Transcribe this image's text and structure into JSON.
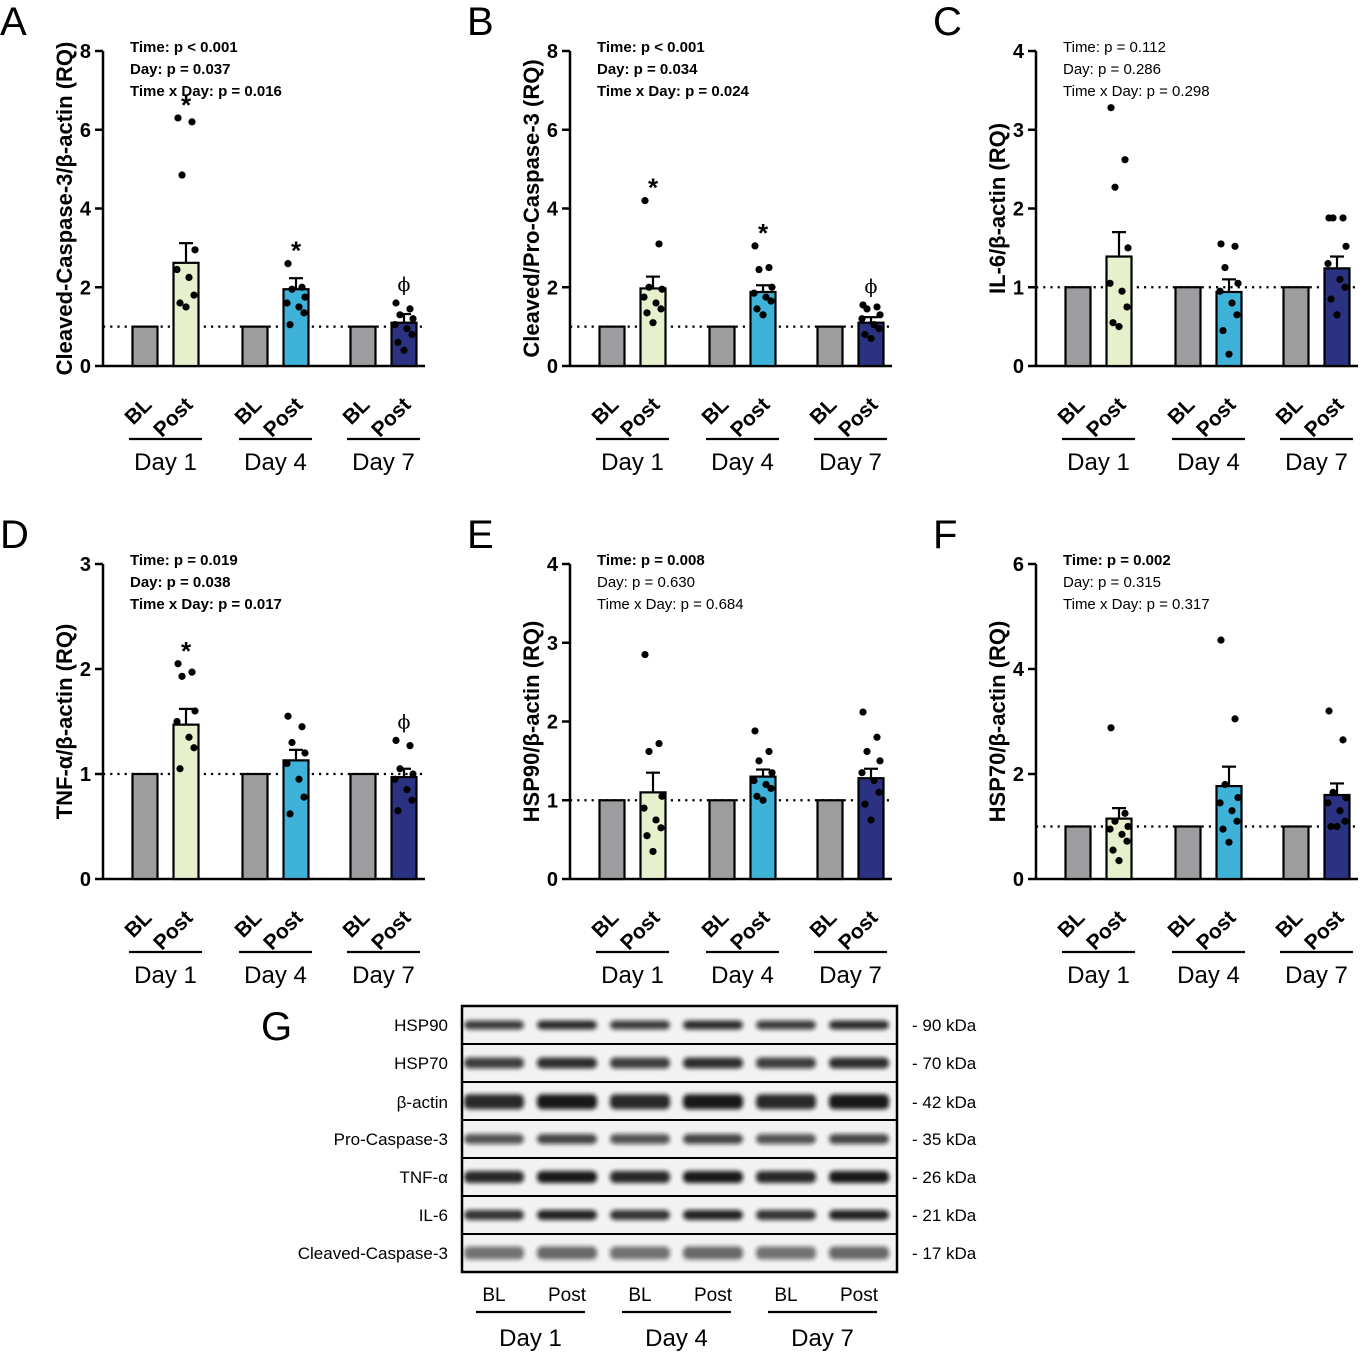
{
  "colors": {
    "BL": "#9d9da0",
    "Day 1 Post": "#e6f0cd",
    "Day 4 Post": "#3fb2d9",
    "Day 7 Post": "#2a3281"
  },
  "chart_data": [
    {
      "panel": "A",
      "type": "bar",
      "ylabel": "Cleaved-Caspase-3/β-actin (RQ)",
      "ylim": [
        0,
        8
      ],
      "yticks": [
        0,
        2,
        4,
        6,
        8
      ],
      "categories": [
        "BL",
        "Post",
        "BL",
        "Post",
        "BL",
        "Post"
      ],
      "groups": [
        "Day 1",
        "Day 4",
        "Day 7"
      ],
      "values": [
        1,
        2.62,
        1,
        1.95,
        1,
        1.1
      ],
      "sem": [
        0,
        0.5,
        0,
        0.28,
        0,
        0.22
      ],
      "points": [
        [],
        [
          6.3,
          6.2,
          4.85,
          2.95,
          2.45,
          2.25,
          1.8,
          1.6,
          1.5
        ],
        [],
        [
          2.6,
          2.0,
          1.95,
          1.75,
          1.6,
          1.5,
          1.35,
          1.05
        ],
        [],
        [
          1.6,
          1.45,
          1.3,
          1.2,
          1.05,
          0.95,
          0.8,
          0.6,
          0.4
        ]
      ],
      "marks": [
        "",
        "*",
        "",
        "*",
        "",
        "ϕ"
      ],
      "stats": [
        {
          "text": "Time: p < 0.001",
          "bold": true
        },
        {
          "text": "Day: p = 0.037",
          "bold": true
        },
        {
          "text": "Time x Day: p = 0.016",
          "bold": true
        }
      ]
    },
    {
      "panel": "B",
      "type": "bar",
      "ylabel": "Cleaved/Pro-Caspase-3 (RQ)",
      "ylim": [
        0,
        8
      ],
      "yticks": [
        0,
        2,
        4,
        6,
        8
      ],
      "categories": [
        "BL",
        "Post",
        "BL",
        "Post",
        "BL",
        "Post"
      ],
      "groups": [
        "Day 1",
        "Day 4",
        "Day 7"
      ],
      "values": [
        1,
        1.97,
        1,
        1.88,
        1,
        1.1
      ],
      "sem": [
        0,
        0.3,
        0,
        0.17,
        0,
        0.14
      ],
      "points": [
        [],
        [
          4.2,
          3.1,
          2.0,
          1.95,
          1.75,
          1.6,
          1.45,
          1.35,
          1.1
        ],
        [],
        [
          3.05,
          2.5,
          2.45,
          2.0,
          1.85,
          1.75,
          1.65,
          1.45,
          1.3
        ],
        [],
        [
          1.55,
          1.5,
          1.45,
          1.3,
          1.2,
          1.05,
          0.95,
          0.8,
          0.7
        ]
      ],
      "marks": [
        "",
        "*",
        "",
        "*",
        "",
        "ϕ"
      ],
      "stats": [
        {
          "text": "Time: p < 0.001",
          "bold": true
        },
        {
          "text": "Day: p = 0.034",
          "bold": true
        },
        {
          "text": "Time x Day: p = 0.024",
          "bold": true
        }
      ]
    },
    {
      "panel": "C",
      "type": "bar",
      "ylabel": "IL-6/β-actin (RQ)",
      "ylim": [
        0,
        4
      ],
      "yticks": [
        0,
        1,
        2,
        3,
        4
      ],
      "categories": [
        "BL",
        "Post",
        "BL",
        "Post",
        "BL",
        "Post"
      ],
      "groups": [
        "Day 1",
        "Day 4",
        "Day 7"
      ],
      "values": [
        1,
        1.39,
        1,
        0.94,
        1,
        1.24
      ],
      "sem": [
        0,
        0.31,
        0,
        0.16,
        0,
        0.15
      ],
      "points": [
        [],
        [
          3.28,
          2.62,
          2.27,
          1.5,
          1.05,
          0.95,
          0.75,
          0.55,
          0.5
        ],
        [],
        [
          1.55,
          1.52,
          1.25,
          1.05,
          0.95,
          0.8,
          0.65,
          0.45,
          0.15
        ],
        [],
        [
          1.88,
          1.88,
          1.88,
          1.52,
          1.3,
          1.1,
          1.0,
          0.85,
          0.65
        ]
      ],
      "marks": [
        "",
        "",
        "",
        "",
        "",
        ""
      ],
      "stats": [
        {
          "text": "Time: p = 0.112",
          "bold": false
        },
        {
          "text": "Day: p = 0.286",
          "bold": false
        },
        {
          "text": "Time x Day: p = 0.298",
          "bold": false
        }
      ]
    },
    {
      "panel": "D",
      "type": "bar",
      "ylabel": "TNF-α/β-actin (RQ)",
      "ylim": [
        0,
        3
      ],
      "yticks": [
        0,
        1,
        2,
        3
      ],
      "categories": [
        "BL",
        "Post",
        "BL",
        "Post",
        "BL",
        "Post"
      ],
      "groups": [
        "Day 1",
        "Day 4",
        "Day 7"
      ],
      "values": [
        1,
        1.47,
        1,
        1.13,
        1,
        0.97
      ],
      "sem": [
        0,
        0.15,
        0,
        0.1,
        0,
        0.08
      ],
      "points": [
        [],
        [
          2.05,
          1.97,
          1.93,
          1.6,
          1.5,
          1.35,
          1.25,
          1.05
        ],
        [],
        [
          1.55,
          1.45,
          1.3,
          1.2,
          1.1,
          0.95,
          0.78,
          0.62
        ],
        [],
        [
          1.32,
          1.27,
          1.05,
          1.0,
          0.95,
          0.85,
          0.75,
          0.65
        ]
      ],
      "marks": [
        "",
        "*",
        "",
        "",
        "",
        "ϕ"
      ],
      "stats": [
        {
          "text": "Time: p = 0.019",
          "bold": true
        },
        {
          "text": "Day: p = 0.038",
          "bold": true
        },
        {
          "text": "Time x Day: p = 0.017",
          "bold": true
        }
      ]
    },
    {
      "panel": "E",
      "type": "bar",
      "ylabel": "HSP90/β-actin (RQ)",
      "ylim": [
        0,
        4
      ],
      "yticks": [
        0,
        1,
        2,
        3,
        4
      ],
      "categories": [
        "BL",
        "Post",
        "BL",
        "Post",
        "BL",
        "Post"
      ],
      "groups": [
        "Day 1",
        "Day 4",
        "Day 7"
      ],
      "values": [
        1,
        1.1,
        1,
        1.3,
        1,
        1.28
      ],
      "sem": [
        0,
        0.25,
        0,
        0.09,
        0,
        0.12
      ],
      "points": [
        [],
        [
          2.85,
          1.72,
          1.62,
          1.05,
          0.9,
          0.75,
          0.65,
          0.55,
          0.35
        ],
        [],
        [
          1.88,
          1.62,
          1.5,
          1.35,
          1.25,
          1.2,
          1.15,
          1.05,
          1.0
        ],
        [],
        [
          2.12,
          1.8,
          1.62,
          1.5,
          1.35,
          1.25,
          1.1,
          0.95,
          0.75
        ]
      ],
      "marks": [
        "",
        "",
        "",
        "",
        "",
        ""
      ],
      "stats": [
        {
          "text": "Time: p = 0.008",
          "bold": true
        },
        {
          "text": "Day: p = 0.630",
          "bold": false
        },
        {
          "text": "Time x Day: p = 0.684",
          "bold": false
        }
      ]
    },
    {
      "panel": "F",
      "type": "bar",
      "ylabel": "HSP70/β-actin (RQ)",
      "ylim": [
        0,
        6
      ],
      "yticks": [
        0,
        2,
        4,
        6
      ],
      "categories": [
        "BL",
        "Post",
        "BL",
        "Post",
        "BL",
        "Post"
      ],
      "groups": [
        "Day 1",
        "Day 4",
        "Day 7"
      ],
      "values": [
        1,
        1.15,
        1,
        1.77,
        1,
        1.6
      ],
      "sem": [
        0,
        0.2,
        0,
        0.37,
        0,
        0.22
      ],
      "points": [
        [],
        [
          2.88,
          1.25,
          1.1,
          1.0,
          0.95,
          0.85,
          0.72,
          0.55,
          0.35
        ],
        [],
        [
          4.55,
          3.05,
          1.8,
          1.55,
          1.45,
          1.3,
          1.1,
          0.95,
          0.7
        ],
        [],
        [
          3.2,
          2.65,
          1.65,
          1.55,
          1.45,
          1.3,
          1.1,
          1.0,
          1.0
        ]
      ],
      "marks": [
        "",
        "",
        "",
        "",
        "",
        ""
      ],
      "stats": [
        {
          "text": "Time: p = 0.002",
          "bold": true
        },
        {
          "text": "Day: p = 0.315",
          "bold": false
        },
        {
          "text": "Time x Day: p = 0.317",
          "bold": false
        }
      ]
    }
  ],
  "western_blot": {
    "panel": "G",
    "rows": [
      {
        "label": "HSP90",
        "kda": "- 90 kDa"
      },
      {
        "label": "HSP70",
        "kda": "- 70 kDa"
      },
      {
        "label": "β-actin",
        "kda": "- 42 kDa"
      },
      {
        "label": "Pro-Caspase-3",
        "kda": "- 35 kDa"
      },
      {
        "label": "TNF-α",
        "kda": "- 26 kDa"
      },
      {
        "label": "IL-6",
        "kda": "- 21 kDa"
      },
      {
        "label": "Cleaved-Caspase-3",
        "kda": "- 17 kDa"
      }
    ],
    "lanes": [
      "BL",
      "Post",
      "BL",
      "Post",
      "BL",
      "Post"
    ],
    "groups": [
      "Day 1",
      "Day 4",
      "Day 7"
    ]
  }
}
